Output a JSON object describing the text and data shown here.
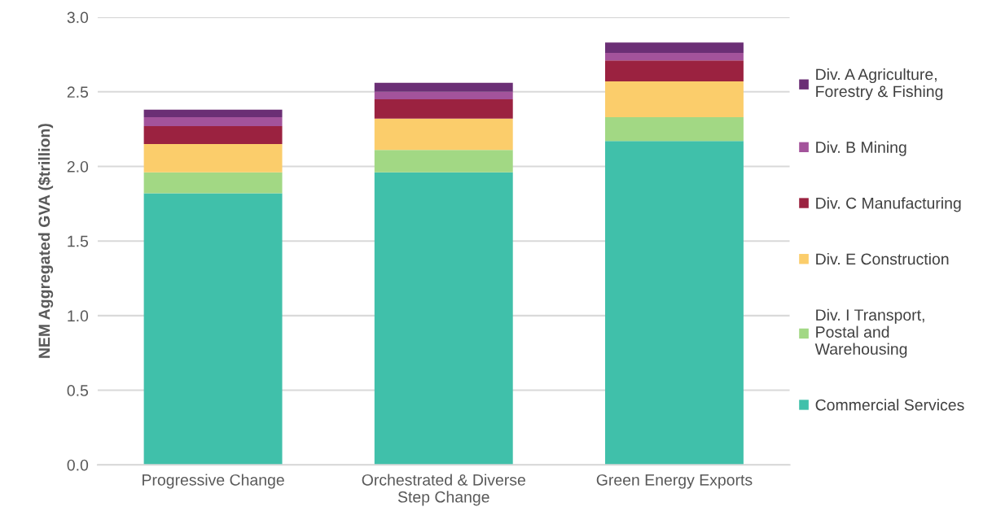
{
  "chart_data": {
    "type": "bar",
    "stacked": true,
    "ylabel": "NEM Aggregated GVA ($trillion)",
    "categories": [
      "Progressive Change",
      "Orchestrated & Diverse\nStep Change",
      "Green Energy Exports"
    ],
    "series": [
      {
        "name": "Commercial Services",
        "color": "#40c0aa",
        "values": [
          1.82,
          1.96,
          2.17
        ]
      },
      {
        "name": "Div. I Transport,\nPostal and\nWarehousing",
        "color": "#a2d884",
        "values": [
          0.14,
          0.15,
          0.16
        ]
      },
      {
        "name": "Div. E Construction",
        "color": "#fbcd6b",
        "values": [
          0.19,
          0.21,
          0.24
        ]
      },
      {
        "name": "Div. C Manufacturing",
        "color": "#9b2240",
        "values": [
          0.12,
          0.13,
          0.14
        ]
      },
      {
        "name": "Div. B Mining",
        "color": "#a3539b",
        "values": [
          0.06,
          0.05,
          0.05
        ]
      },
      {
        "name": "Div. A Agriculture,\nForestry & Fishing",
        "color": "#6b2f75",
        "values": [
          0.05,
          0.06,
          0.07
        ]
      }
    ],
    "ylim": [
      0,
      3.0
    ],
    "yticks": [
      {
        "value": 0,
        "label": "0.0"
      },
      {
        "value": 0.5,
        "label": "0.5"
      },
      {
        "value": 1.0,
        "label": "1.0"
      },
      {
        "value": 1.5,
        "label": "1.5"
      },
      {
        "value": 2.0,
        "label": "2.0"
      },
      {
        "value": 2.5,
        "label": "2.5"
      },
      {
        "value": 3.0,
        "label": "3.0"
      }
    ],
    "grid": "y",
    "legend": "right"
  }
}
